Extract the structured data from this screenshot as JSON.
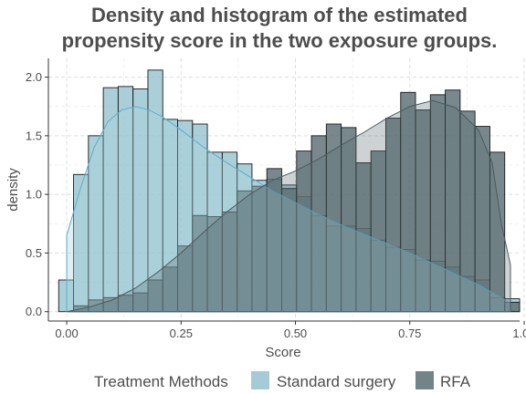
{
  "chart_data": {
    "type": "bar",
    "subtype": "overlaid histogram with density curves",
    "title_lines": [
      "Density and histogram of the estimated",
      "propensity score in the two exposure groups."
    ],
    "xlabel": "Score",
    "ylabel": "density",
    "xlim": [
      -0.04,
      0.99
    ],
    "ylim": [
      -0.08,
      2.16
    ],
    "x_ticks": [
      0.0,
      0.25,
      0.5,
      0.75,
      1.0
    ],
    "x_tick_labels": [
      "0.00",
      "0.25",
      "0.50",
      "0.75",
      "1.00"
    ],
    "y_ticks": [
      0.0,
      0.5,
      1.0,
      1.5,
      2.0
    ],
    "y_tick_labels": [
      "0.0",
      "0.5",
      "1.0",
      "1.5",
      "2.0"
    ],
    "grid": true,
    "bin_width": 0.0325,
    "bin_starts": [
      -0.0175,
      0.015,
      0.0475,
      0.08,
      0.1125,
      0.145,
      0.1775,
      0.21,
      0.2425,
      0.275,
      0.3075,
      0.34,
      0.3725,
      0.405,
      0.4375,
      0.47,
      0.5025,
      0.535,
      0.5675,
      0.6,
      0.6325,
      0.665,
      0.6975,
      0.73,
      0.7625,
      0.795,
      0.8275,
      0.86,
      0.8925,
      0.925,
      0.9575
    ],
    "series": [
      {
        "name": "Standard surgery",
        "color": "#8fbfcc",
        "bin_values": [
          0.27,
          1.17,
          1.5,
          1.91,
          1.92,
          1.9,
          2.06,
          1.64,
          1.63,
          1.6,
          1.36,
          1.36,
          1.26,
          1.12,
          1.13,
          1.08,
          0.98,
          0.82,
          0.73,
          0.73,
          0.71,
          0.61,
          0.55,
          0.53,
          0.44,
          0.43,
          0.38,
          0.3,
          0.27,
          0.12,
          0.11
        ],
        "density": [
          [
            0.0,
            0.65
          ],
          [
            0.03,
            1.05
          ],
          [
            0.06,
            1.4
          ],
          [
            0.09,
            1.62
          ],
          [
            0.12,
            1.72
          ],
          [
            0.15,
            1.75
          ],
          [
            0.18,
            1.72
          ],
          [
            0.21,
            1.66
          ],
          [
            0.25,
            1.55
          ],
          [
            0.3,
            1.4
          ],
          [
            0.35,
            1.27
          ],
          [
            0.4,
            1.15
          ],
          [
            0.45,
            1.03
          ],
          [
            0.5,
            0.93
          ],
          [
            0.55,
            0.83
          ],
          [
            0.6,
            0.74
          ],
          [
            0.65,
            0.66
          ],
          [
            0.7,
            0.58
          ],
          [
            0.75,
            0.5
          ],
          [
            0.8,
            0.41
          ],
          [
            0.85,
            0.32
          ],
          [
            0.9,
            0.23
          ],
          [
            0.95,
            0.12
          ],
          [
            0.97,
            0.07
          ]
        ]
      },
      {
        "name": "RFA",
        "color": "#5a6e73",
        "bin_values": [
          0.0,
          0.05,
          0.1,
          0.12,
          0.14,
          0.16,
          0.27,
          0.38,
          0.56,
          0.82,
          0.81,
          0.85,
          1.03,
          1.07,
          1.22,
          1.05,
          1.37,
          1.5,
          1.6,
          1.57,
          1.27,
          1.37,
          1.65,
          1.87,
          1.72,
          1.85,
          1.89,
          1.71,
          1.58,
          1.36,
          0.08
        ],
        "density": [
          [
            0.0,
            0.0
          ],
          [
            0.05,
            0.04
          ],
          [
            0.1,
            0.1
          ],
          [
            0.15,
            0.2
          ],
          [
            0.2,
            0.34
          ],
          [
            0.25,
            0.5
          ],
          [
            0.3,
            0.68
          ],
          [
            0.35,
            0.85
          ],
          [
            0.4,
            1.0
          ],
          [
            0.45,
            1.12
          ],
          [
            0.5,
            1.2
          ],
          [
            0.55,
            1.3
          ],
          [
            0.6,
            1.42
          ],
          [
            0.65,
            1.53
          ],
          [
            0.7,
            1.65
          ],
          [
            0.75,
            1.75
          ],
          [
            0.8,
            1.8
          ],
          [
            0.85,
            1.74
          ],
          [
            0.9,
            1.55
          ],
          [
            0.93,
            1.27
          ],
          [
            0.95,
            0.75
          ],
          [
            0.97,
            0.4
          ]
        ]
      }
    ],
    "legend": {
      "title": "Treatment Methods",
      "position": "bottom",
      "items": [
        {
          "label": "Standard surgery",
          "color": "#8fbfcc"
        },
        {
          "label": "RFA",
          "color": "#5a6e73"
        }
      ]
    }
  }
}
